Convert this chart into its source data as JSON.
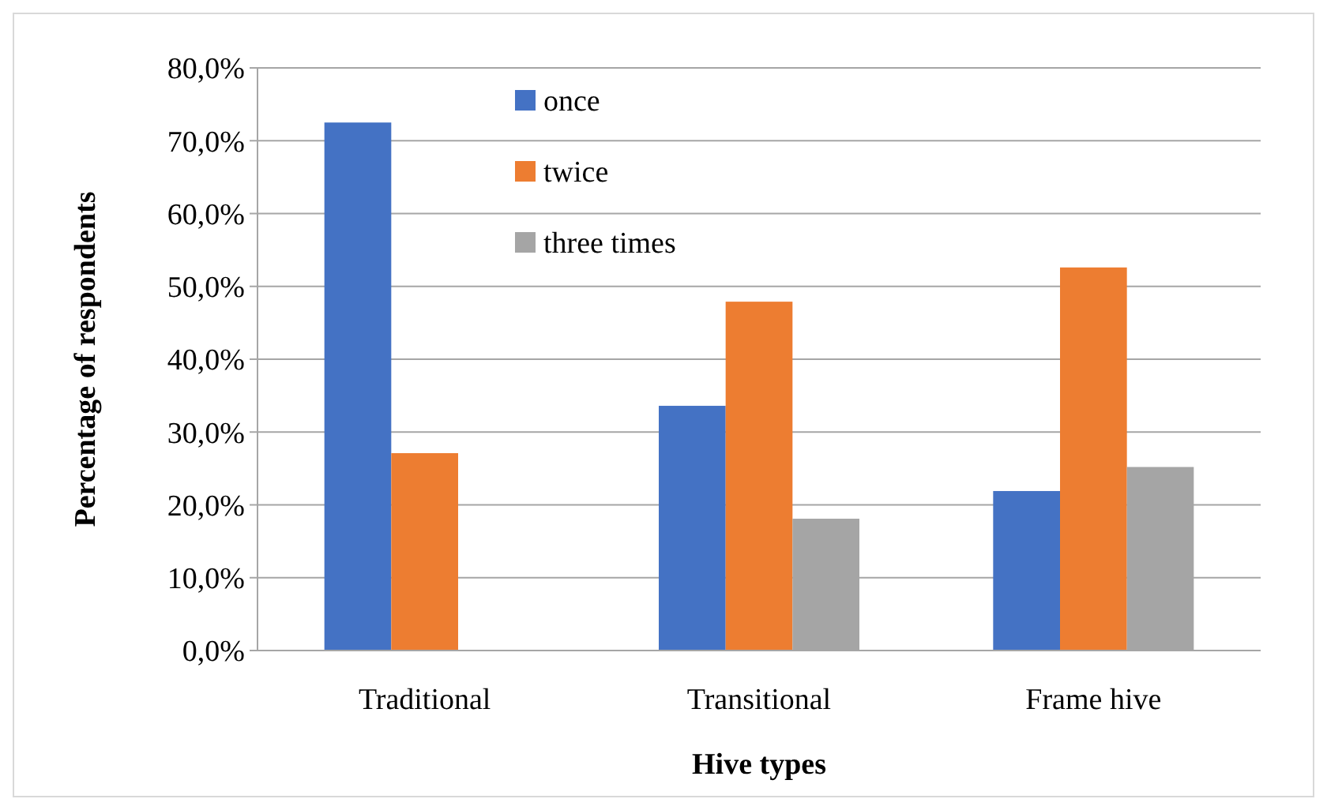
{
  "chart_data": {
    "type": "bar",
    "xlabel": "Hive types",
    "ylabel": "Percentage  of respondents",
    "categories": [
      "Traditional",
      "Transitional",
      "Frame hive"
    ],
    "series": [
      {
        "name": "once",
        "color": "#4472c4",
        "values": [
          72.5,
          33.6,
          21.9
        ]
      },
      {
        "name": "twice",
        "color": "#ed7d31",
        "values": [
          27.1,
          47.9,
          52.6
        ]
      },
      {
        "name": "three times",
        "color": "#a5a5a5",
        "values": [
          null,
          18.1,
          25.2
        ]
      }
    ],
    "ylim": [
      0,
      80
    ],
    "yticks": [
      {
        "value": 0,
        "label": "0,0%"
      },
      {
        "value": 10,
        "label": "10,0%"
      },
      {
        "value": 20,
        "label": "20,0%"
      },
      {
        "value": 30,
        "label": "30,0%"
      },
      {
        "value": 40,
        "label": "40,0%"
      },
      {
        "value": 50,
        "label": "50,0%"
      },
      {
        "value": 60,
        "label": "60,0%"
      },
      {
        "value": 70,
        "label": "70,0%"
      },
      {
        "value": 80,
        "label": "80,0%"
      }
    ],
    "grid": "y",
    "legend": "top"
  }
}
